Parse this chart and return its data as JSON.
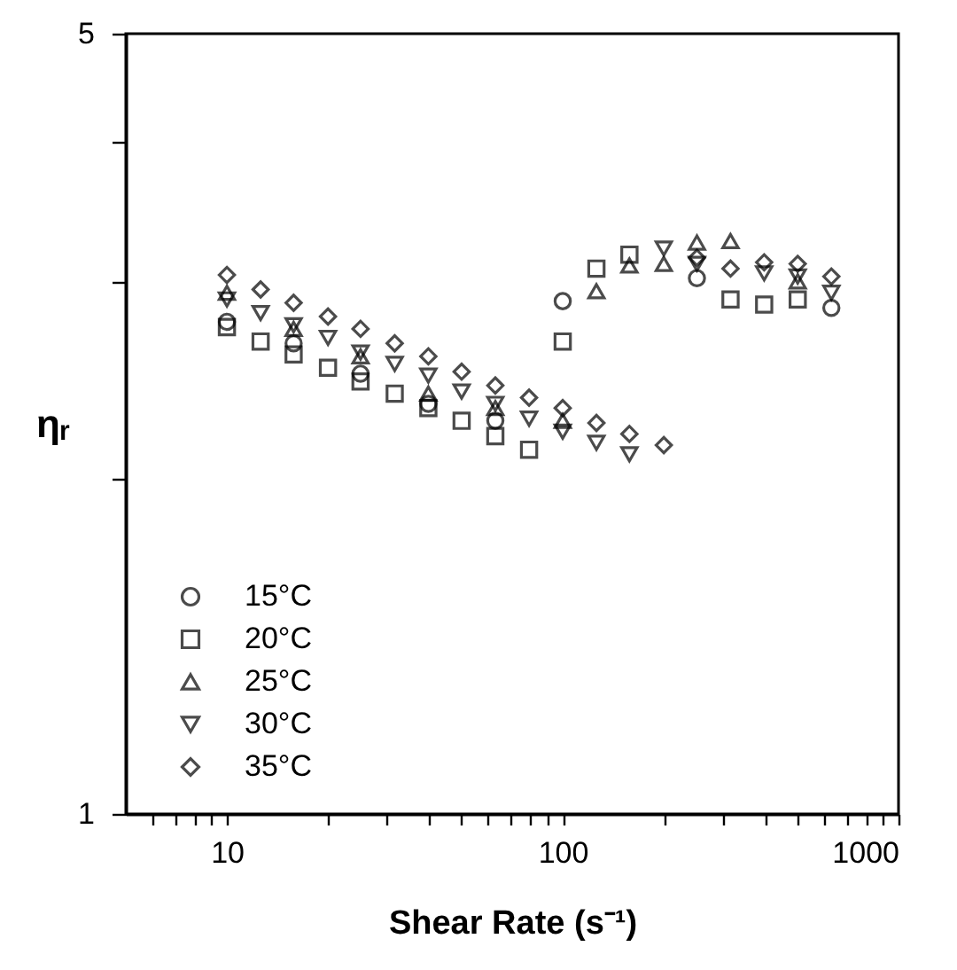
{
  "chart_data": {
    "type": "scatter",
    "xlabel": "Shear Rate (s⁻¹)",
    "ylabel": "ηᵣ",
    "log": "xy",
    "xlim": [
      5,
      1000
    ],
    "ylim": [
      1,
      5
    ],
    "xticks": [
      {
        "value": 6,
        "label": null
      },
      {
        "value": 7,
        "label": null
      },
      {
        "value": 8,
        "label": null
      },
      {
        "value": 9,
        "label": null
      },
      10,
      {
        "value": 20,
        "label": null
      },
      {
        "value": 30,
        "label": null
      },
      {
        "value": 40,
        "label": null
      },
      {
        "value": 50,
        "label": null
      },
      {
        "value": 60,
        "label": null
      },
      {
        "value": 70,
        "label": null
      },
      {
        "value": 80,
        "label": null
      },
      {
        "value": 90,
        "label": null
      },
      100,
      {
        "value": 200,
        "label": null
      },
      {
        "value": 300,
        "label": null
      },
      {
        "value": 400,
        "label": null
      },
      {
        "value": 500,
        "label": null
      },
      {
        "value": 600,
        "label": null
      },
      {
        "value": 700,
        "label": null
      },
      {
        "value": 800,
        "label": null
      },
      {
        "value": 900,
        "label": null
      },
      1000
    ],
    "yticks": [
      1,
      {
        "value": 2,
        "label": null
      },
      {
        "value": 3,
        "label": null
      },
      {
        "value": 4,
        "label": null
      },
      5
    ],
    "grid": false,
    "legend": "bottom left",
    "series": [
      {
        "name": "15°C",
        "color": "#000000",
        "marker": "circle",
        "x": [
          10,
          15.8,
          25,
          39.8,
          63,
          100,
          251,
          631
        ],
        "values": [
          2.76,
          2.64,
          2.48,
          2.33,
          2.25,
          2.88,
          3.02,
          2.84
        ]
      },
      {
        "name": "20°C",
        "color": "#000000",
        "marker": "square",
        "x": [
          10,
          12.6,
          15.8,
          20,
          25,
          31.6,
          39.8,
          50,
          63,
          79.4,
          100,
          126,
          158,
          316,
          398,
          501
        ],
        "values": [
          2.73,
          2.65,
          2.58,
          2.51,
          2.44,
          2.38,
          2.31,
          2.25,
          2.18,
          2.12,
          2.65,
          3.08,
          3.17,
          2.89,
          2.86,
          2.89
        ]
      },
      {
        "name": "25°C",
        "color": "#000000",
        "marker": "triangle",
        "x": [
          10,
          15.8,
          25,
          39.8,
          63,
          100,
          126,
          158,
          200,
          251,
          316,
          501
        ],
        "values": [
          2.93,
          2.72,
          2.57,
          2.38,
          2.31,
          2.25,
          2.94,
          3.1,
          3.11,
          3.25,
          3.26,
          3.0
        ]
      },
      {
        "name": "30°C",
        "color": "#000000",
        "marker": "triangle-down",
        "x": [
          10,
          12.6,
          15.8,
          20,
          25,
          31.6,
          39.8,
          50,
          63,
          79.4,
          100,
          126,
          158,
          200,
          251,
          398,
          501,
          631
        ],
        "values": [
          2.89,
          2.81,
          2.74,
          2.67,
          2.59,
          2.53,
          2.47,
          2.39,
          2.33,
          2.26,
          2.2,
          2.15,
          2.1,
          3.21,
          3.11,
          3.05,
          3.03,
          2.93
        ]
      },
      {
        "name": "35°C",
        "color": "#000000",
        "marker": "diamond",
        "x": [
          10,
          12.6,
          15.8,
          20,
          25,
          31.6,
          39.8,
          50,
          63,
          79.4,
          100,
          126,
          158,
          200,
          251,
          316,
          398,
          501,
          631
        ],
        "values": [
          3.04,
          2.95,
          2.87,
          2.79,
          2.72,
          2.64,
          2.57,
          2.49,
          2.42,
          2.36,
          2.31,
          2.24,
          2.19,
          2.14,
          3.15,
          3.08,
          3.12,
          3.11,
          3.03
        ]
      }
    ]
  }
}
